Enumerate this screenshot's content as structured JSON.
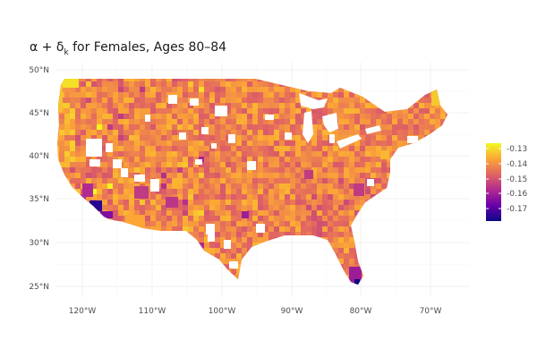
{
  "title": {
    "prefix": "α + δ",
    "subscript": "k",
    "suffix": " for Females, Ages  80–84"
  },
  "axes": {
    "y_ticks": [
      "50°N",
      "45°N",
      "40°N",
      "35°N",
      "30°N",
      "25°N"
    ],
    "x_ticks": [
      "120°W",
      "110°W",
      "100°W",
      "90°W",
      "80°W",
      "70°W"
    ],
    "gridlines": true
  },
  "legend": {
    "position": "right",
    "labels": [
      "-0.13",
      "-0.14",
      "-0.15",
      "-0.16",
      "-0.17"
    ],
    "colorscale": [
      "#0d0887",
      "#6a00a8",
      "#b12a90",
      "#e16462",
      "#fca636",
      "#f0f921"
    ]
  },
  "chart_data": {
    "type": "heatmap",
    "subtype": "choropleth",
    "region": "contiguous United States (counties)",
    "value_range": [
      -0.175,
      -0.125
    ],
    "typical_value": -0.14,
    "low_value_areas": [
      "Los Angeles",
      "Miami"
    ],
    "high_value_areas": [
      "northwest Washington",
      "Maine"
    ]
  }
}
